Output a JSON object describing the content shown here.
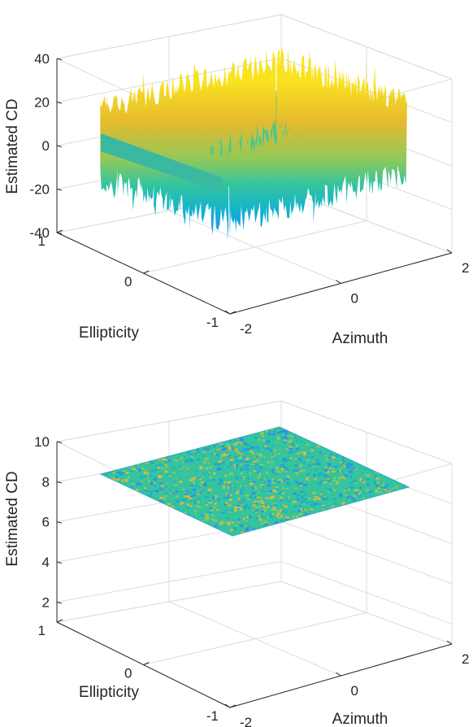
{
  "chart_data": [
    {
      "type": "surface",
      "xlabel": "Azimuth",
      "ylabel": "Ellipticity",
      "zlabel": "Estimated CD",
      "xlim": [
        -2,
        2
      ],
      "ylim": [
        -1,
        1
      ],
      "zlim": [
        -40,
        40
      ],
      "xticks": [
        "-2",
        "0",
        "2"
      ],
      "yticks": [
        "-1",
        "0",
        "1"
      ],
      "zticks": [
        "-40",
        "-20",
        "0",
        "20",
        "40"
      ],
      "grid": true,
      "colormap": [
        "#3e26a8",
        "#4a5bfa",
        "#2c8ef0",
        "#12b2d0",
        "#34c49e",
        "#8fc95a",
        "#e5ba2f",
        "#f9e21f"
      ],
      "surface_description": "noisy surface; near-zero over most of the domain with large +/-40 oscillations along the edges"
    },
    {
      "type": "surface",
      "xlabel": "Azimuth",
      "ylabel": "Ellipticity",
      "zlabel": "Estimated CD",
      "xlim": [
        -2,
        2
      ],
      "ylim": [
        -1,
        1
      ],
      "zlim": [
        1,
        10
      ],
      "xticks": [
        "-2",
        "0",
        "2"
      ],
      "yticks": [
        "-1",
        "0",
        "1"
      ],
      "zticks": [
        "2",
        "4",
        "6",
        "8",
        "10"
      ],
      "grid": true,
      "colormap": [
        "#2c8ef0",
        "#12b2d0",
        "#34c49e",
        "#8fc95a",
        "#e5ba2f"
      ],
      "surface_level": 8,
      "surface_description": "flat noisy plane at approximately 8"
    }
  ]
}
